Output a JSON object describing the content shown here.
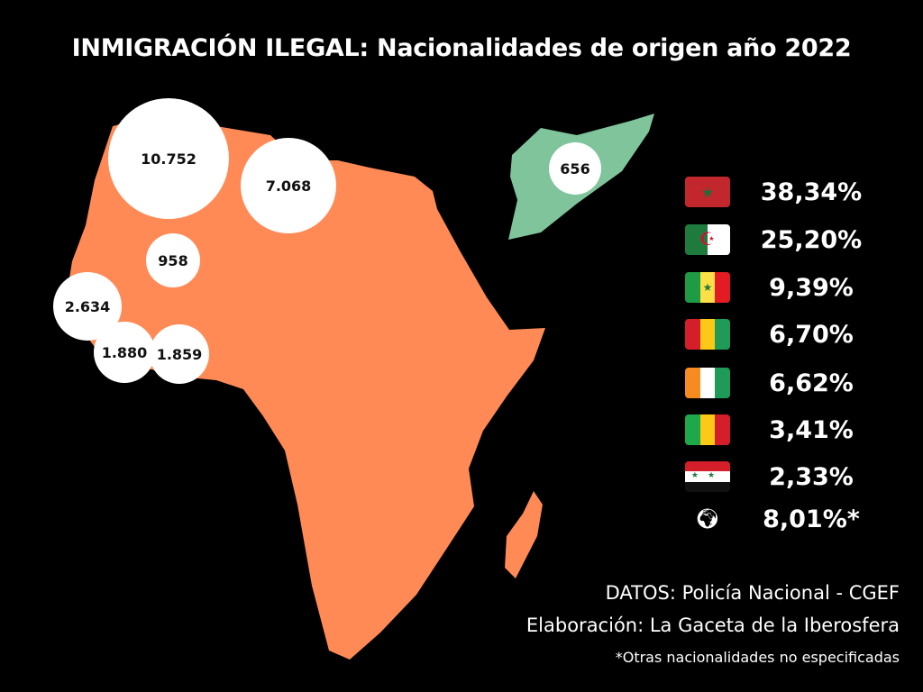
{
  "title": "INMIGRACIÓN ILEGAL: Nacionalidades de origen año 2022",
  "colors": {
    "africa": "#ff8a55",
    "syria": "#7fc49a",
    "bubble": "#ffffff"
  },
  "bubbles": [
    {
      "label": "10.752",
      "country": "Morocco"
    },
    {
      "label": "7.068",
      "country": "Algeria"
    },
    {
      "label": "958",
      "country": "Mali"
    },
    {
      "label": "2.634",
      "country": "Senegal"
    },
    {
      "label": "1.880",
      "country": "Guinea"
    },
    {
      "label": "1.859",
      "country": "Ivory Coast"
    },
    {
      "label": "656",
      "country": "Syria"
    }
  ],
  "legend": [
    {
      "flag": "morocco-flag",
      "value": "38,34%"
    },
    {
      "flag": "algeria-flag",
      "value": "25,20%"
    },
    {
      "flag": "senegal-flag",
      "value": "9,39%"
    },
    {
      "flag": "guinea-flag",
      "value": "6,70%"
    },
    {
      "flag": "ivory-coast-flag",
      "value": "6,62%"
    },
    {
      "flag": "mali-flag",
      "value": "3,41%"
    },
    {
      "flag": "syria-flag",
      "value": "2,33%"
    },
    {
      "flag": "world-icon",
      "value": "8,01%*"
    }
  ],
  "source": {
    "datos": "DATOS: Policía Nacional - CGEF",
    "elaboracion": "Elaboración: La Gaceta de la Iberosfera",
    "note": "*Otras nacionalidades no especificadas"
  }
}
